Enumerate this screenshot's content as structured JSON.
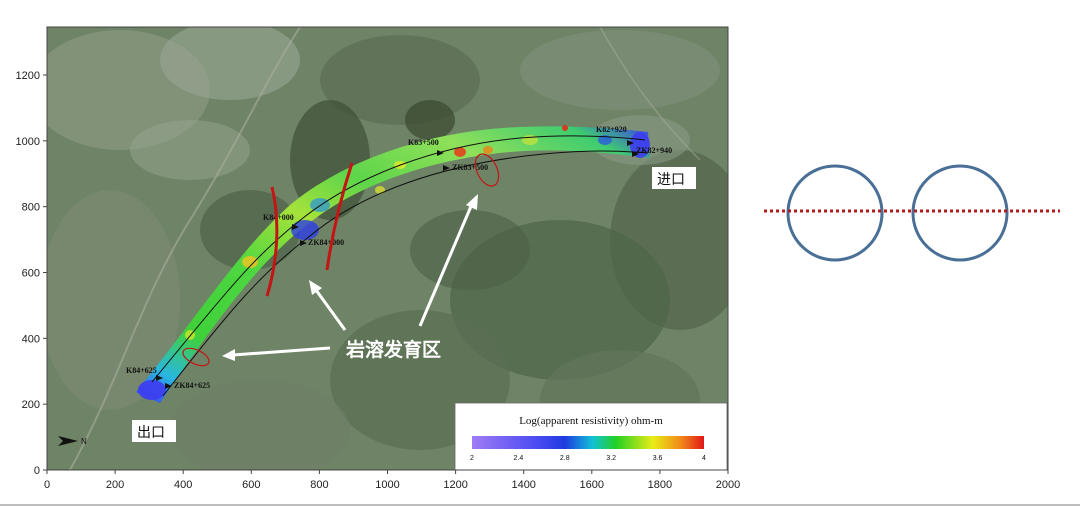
{
  "map": {
    "x_ticks": [
      "0",
      "200",
      "400",
      "600",
      "800",
      "1000",
      "1200",
      "1400",
      "1600",
      "1800",
      "2000"
    ],
    "y_ticks": [
      "0",
      "200",
      "400",
      "600",
      "800",
      "1000",
      "1200"
    ],
    "stations": {
      "k82_920": "K82+920",
      "zk82_940": "ZK82+940",
      "k83_500": "K83+500",
      "zk83_500": "ZK83+500",
      "k84_000": "K84+000",
      "zk84_000": "ZK84+000",
      "k84_625": "K84+625",
      "zk84_625": "ZK84+625"
    },
    "karst_label": "岩溶发育区",
    "entrance_label": "进口",
    "exit_label": "出口",
    "north_label": "N",
    "legend": {
      "title": "Log(apparent resistivity) ohm-m",
      "ticks": [
        "2",
        "2.4",
        "2.8",
        "3.2",
        "3.6",
        "4"
      ]
    }
  },
  "colors": {
    "anomaly_line": "#c41515",
    "anomaly_ellipse": "#c41515",
    "circle_stroke": "#4a6f96",
    "dotted_line": "#b31b1b",
    "bottom_rule": "#bdbdbd"
  }
}
